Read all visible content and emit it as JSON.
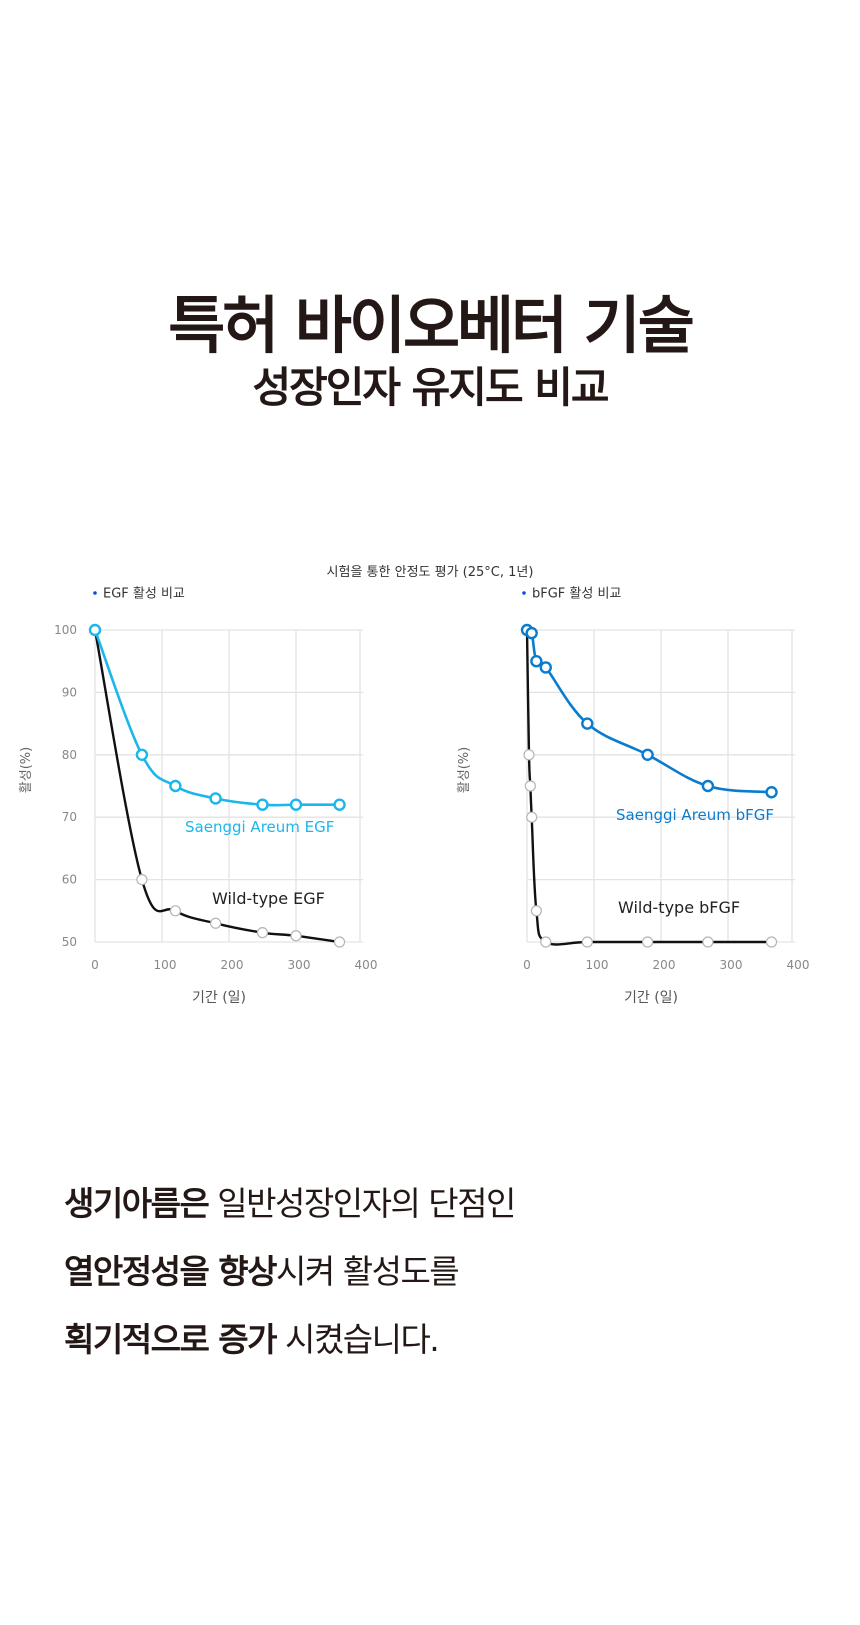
{
  "header": {
    "title": "특허 바이오베터 기술",
    "subtitle": "성장인자 유지도 비교"
  },
  "chart_caption": "시험을 통한 안정도 평가 (25°C, 1년)",
  "colors": {
    "text_dark": "#231815",
    "egf_saenggi": "#1bb7ea",
    "bfgf_saenggi": "#0a7cd0",
    "wild_type": "#111111",
    "grid": "#e3e3e3",
    "tick": "#888888",
    "legend_dot": "#0b4fd6"
  },
  "chart_data": [
    {
      "type": "line",
      "title": "EGF 활성 비교",
      "xlabel": "기간 (일)",
      "ylabel": "활성(%)",
      "xlim": [
        0,
        400
      ],
      "ylim": [
        50,
        100
      ],
      "xticks": [
        0,
        100,
        200,
        300,
        400
      ],
      "yticks": [
        50,
        60,
        70,
        80,
        90,
        100
      ],
      "grid": true,
      "series": [
        {
          "name": "Saenggi Areum EGF",
          "color": "#1bb7ea",
          "x": [
            0,
            70,
            120,
            180,
            250,
            300,
            365
          ],
          "y": [
            100,
            80,
            75,
            73,
            72,
            72,
            72
          ]
        },
        {
          "name": "Wild-type EGF",
          "color": "#111111",
          "x": [
            0,
            70,
            120,
            180,
            250,
            300,
            365
          ],
          "y": [
            100,
            60,
            55,
            53,
            51.5,
            51,
            50
          ]
        }
      ]
    },
    {
      "type": "line",
      "title": "bFGF 활성 비교",
      "xlabel": "기간 (일)",
      "ylabel": "활성(%)",
      "xlim": [
        0,
        400
      ],
      "ylim": [
        50,
        100
      ],
      "xticks": [
        0,
        100,
        200,
        300,
        400
      ],
      "yticks": [
        50,
        60,
        70,
        80,
        90,
        100
      ],
      "grid": true,
      "series": [
        {
          "name": "Saenggi Areum bFGF",
          "color": "#0a7cd0",
          "x": [
            0,
            7,
            14,
            28,
            90,
            180,
            270,
            365
          ],
          "y": [
            100,
            99.5,
            95,
            94,
            85,
            80,
            75,
            74
          ]
        },
        {
          "name": "Wild-type bFGF",
          "color": "#111111",
          "x": [
            0,
            3,
            5,
            7,
            14,
            28,
            90,
            180,
            270,
            365
          ],
          "y": [
            100,
            80,
            75,
            70,
            55,
            50,
            50,
            50,
            50,
            50
          ]
        }
      ]
    }
  ],
  "body": {
    "line1_bold": "생기아름은",
    "line1_regular": " 일반성장인자의 단점인",
    "line2_bold": "열안정성을 향상",
    "line2_regular": "시켜 활성도를",
    "line3_bold": "획기적으로 증가",
    "line3_regular": " 시켰습니다."
  }
}
